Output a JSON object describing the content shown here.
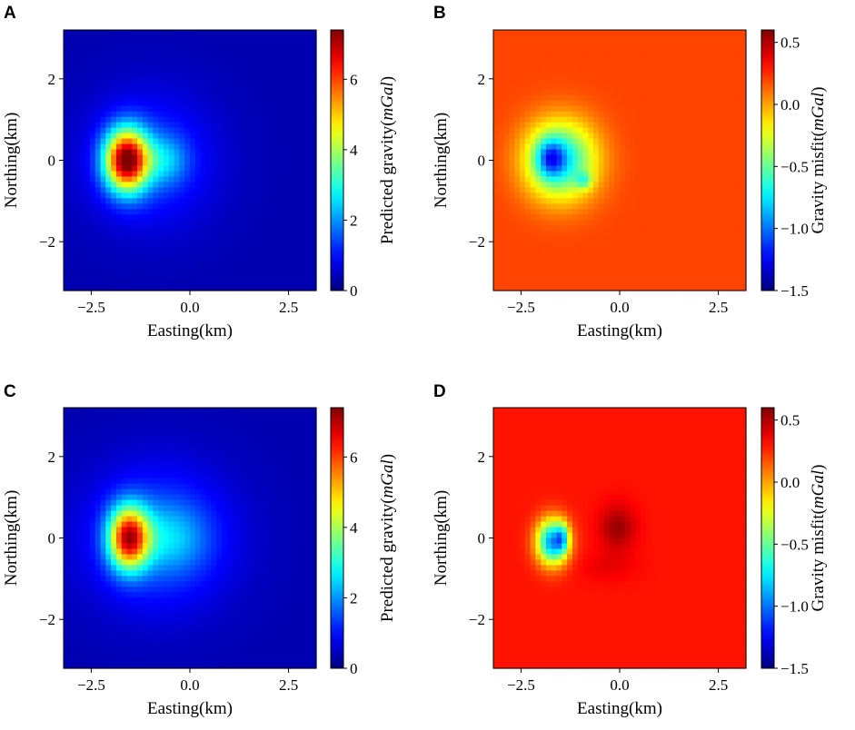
{
  "chart_data": [
    {
      "type": "heatmap",
      "panel": "A",
      "xlabel": "Easting(km)",
      "ylabel": "Northing(km)",
      "xlim": [
        -3.2,
        3.2
      ],
      "ylim": [
        -3.2,
        3.2
      ],
      "xticks": [
        -2.5,
        0.0,
        2.5
      ],
      "xtick_labels": [
        "−2.5",
        "0.0",
        "2.5"
      ],
      "yticks": [
        -2,
        0,
        2
      ],
      "ytick_labels": [
        "−2",
        "0",
        "2"
      ],
      "colorbar_label": "Predicted gravity",
      "colorbar_unit": "mGal",
      "clim": [
        0,
        7.4
      ],
      "cticks": [
        0,
        2,
        4,
        6
      ],
      "ctick_labels": [
        "0",
        "2",
        "4",
        "6"
      ],
      "field": {
        "background": 0.35,
        "sources": [
          {
            "x": -1.6,
            "y": 0.0,
            "sx": 0.55,
            "sy": 0.75,
            "amp": 6.6
          },
          {
            "x": -0.6,
            "y": 0.0,
            "sx": 0.55,
            "sy": 0.6,
            "amp": 1.2
          },
          {
            "x": -1.0,
            "y": 0.0,
            "sx": 1.6,
            "sy": 1.6,
            "amp": 1.0
          }
        ]
      }
    },
    {
      "type": "heatmap",
      "panel": "B",
      "xlabel": "Easting(km)",
      "ylabel": "Northing(km)",
      "xlim": [
        -3.2,
        3.2
      ],
      "ylim": [
        -3.2,
        3.2
      ],
      "xticks": [
        -2.5,
        0.0,
        2.5
      ],
      "xtick_labels": [
        "−2.5",
        "0.0",
        "2.5"
      ],
      "yticks": [
        -2,
        0,
        2
      ],
      "ytick_labels": [
        "−2",
        "0",
        "2"
      ],
      "colorbar_label": "Gravity misfit",
      "colorbar_unit": "mGal",
      "clim": [
        -1.5,
        0.6
      ],
      "cticks": [
        -1.5,
        -1.0,
        -0.5,
        0.0,
        0.5
      ],
      "ctick_labels": [
        "−1.5",
        "−1.0",
        "−0.5",
        "0.0",
        "0.5"
      ],
      "field": {
        "background": 0.2,
        "sources": [
          {
            "x": -1.5,
            "y": 0.0,
            "sx": 0.9,
            "sy": 0.95,
            "amp": -0.95
          },
          {
            "x": -1.75,
            "y": 0.05,
            "sx": 0.35,
            "sy": 0.45,
            "amp": -0.6
          },
          {
            "x": -0.9,
            "y": -0.5,
            "sx": 0.2,
            "sy": 0.2,
            "amp": -0.4
          }
        ]
      }
    },
    {
      "type": "heatmap",
      "panel": "C",
      "xlabel": "Easting(km)",
      "ylabel": "Northing(km)",
      "xlim": [
        -3.2,
        3.2
      ],
      "ylim": [
        -3.2,
        3.2
      ],
      "xticks": [
        -2.5,
        0.0,
        2.5
      ],
      "xtick_labels": [
        "−2.5",
        "0.0",
        "2.5"
      ],
      "yticks": [
        -2,
        0,
        2
      ],
      "ytick_labels": [
        "−2",
        "0",
        "2"
      ],
      "colorbar_label": "Predicted gravity",
      "colorbar_unit": "mGal",
      "clim": [
        0,
        7.4
      ],
      "cticks": [
        0,
        2,
        4,
        6
      ],
      "ctick_labels": [
        "0",
        "2",
        "4",
        "6"
      ],
      "field": {
        "background": 0.35,
        "sources": [
          {
            "x": -1.55,
            "y": 0.0,
            "sx": 0.5,
            "sy": 0.75,
            "amp": 5.6
          },
          {
            "x": -0.5,
            "y": 0.0,
            "sx": 0.9,
            "sy": 0.8,
            "amp": 1.0
          },
          {
            "x": -0.8,
            "y": 0.0,
            "sx": 1.8,
            "sy": 1.7,
            "amp": 1.3
          }
        ]
      }
    },
    {
      "type": "heatmap",
      "panel": "D",
      "xlabel": "Easting(km)",
      "ylabel": "Northing(km)",
      "xlim": [
        -3.2,
        3.2
      ],
      "ylim": [
        -3.2,
        3.2
      ],
      "xticks": [
        -2.5,
        0.0,
        2.5
      ],
      "xtick_labels": [
        "−2.5",
        "0.0",
        "2.5"
      ],
      "yticks": [
        -2,
        0,
        2
      ],
      "ytick_labels": [
        "−2",
        "0",
        "2"
      ],
      "colorbar_label": "Gravity misfit",
      "colorbar_unit": "mGal",
      "clim": [
        -1.5,
        0.6
      ],
      "cticks": [
        -1.5,
        -1.0,
        -0.5,
        0.0,
        0.5
      ],
      "ctick_labels": [
        "−1.5",
        "−1.0",
        "−0.5",
        "0.0",
        "0.5"
      ],
      "field": {
        "background": 0.3,
        "sources": [
          {
            "x": -1.7,
            "y": -0.1,
            "sx": 0.4,
            "sy": 0.55,
            "amp": -1.25
          },
          {
            "x": -1.45,
            "y": 0.0,
            "sx": 0.15,
            "sy": 0.35,
            "amp": -0.5
          },
          {
            "x": -0.05,
            "y": 0.25,
            "sx": 0.45,
            "sy": 0.55,
            "amp": 0.25
          },
          {
            "x": -0.3,
            "y": -0.7,
            "sx": 0.7,
            "sy": 0.35,
            "amp": 0.08
          }
        ]
      }
    }
  ]
}
